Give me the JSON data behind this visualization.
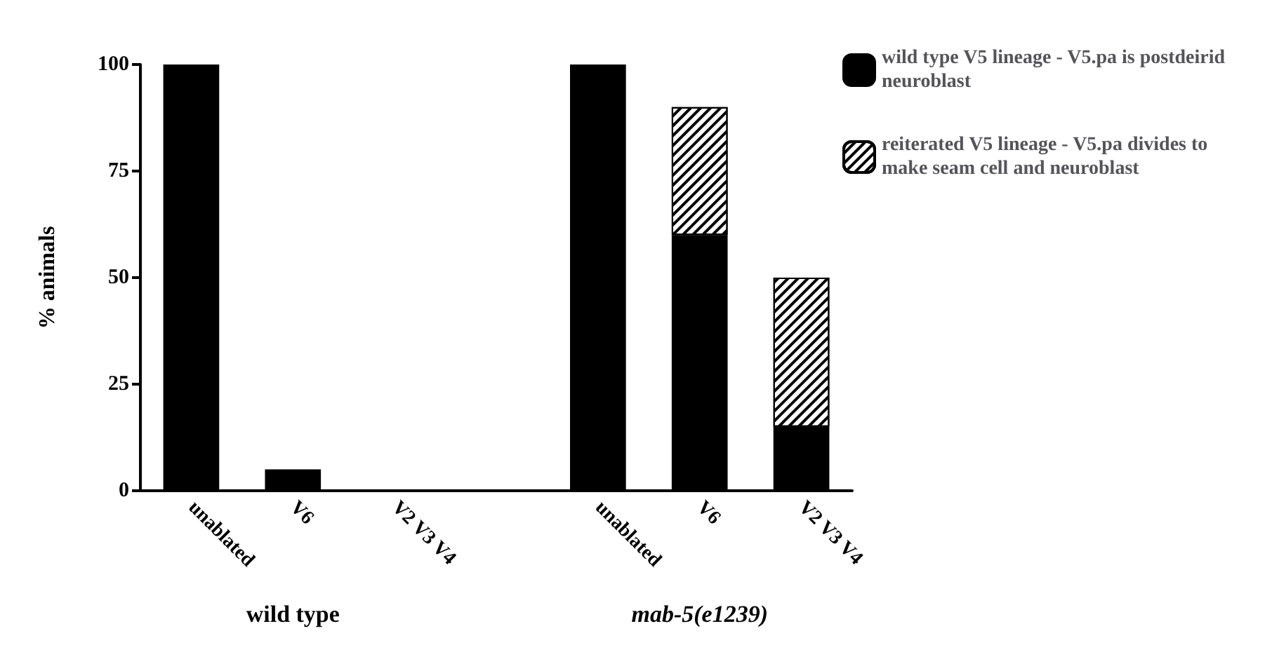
{
  "chart_data": {
    "type": "bar",
    "stacked": true,
    "ylabel": "% animals",
    "categories": [
      "unablated",
      "V6",
      "V2 V3 V4",
      null,
      "unablated",
      "V6",
      "V2 V3 V4"
    ],
    "series": [
      {
        "name": "wild type V5 lineage - V5.pa is postdeirid neuroblast",
        "color": "#000000",
        "values": [
          100,
          5,
          null,
          null,
          100,
          60,
          15
        ]
      },
      {
        "name": "reiterated V5 lineage - V5.pa divides to make seam cell and neuroblast",
        "color": "#ffffff",
        "values": [
          null,
          null,
          null,
          null,
          null,
          30,
          35
        ]
      }
    ],
    "ylim": [
      0,
      100
    ],
    "yticks": [
      0,
      25,
      50,
      75,
      100
    ],
    "grid": false,
    "legend": "top right",
    "annotations": [
      "wild type",
      "mab-5(e1239)"
    ]
  }
}
